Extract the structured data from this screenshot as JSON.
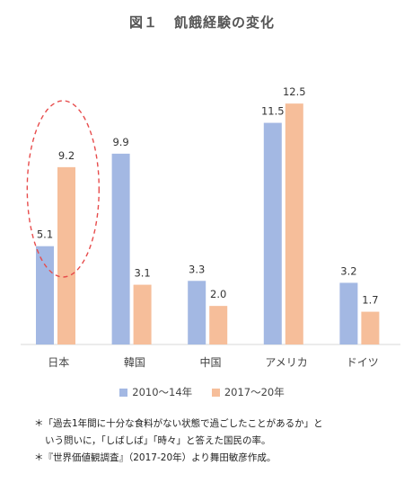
{
  "title": {
    "number": "図１",
    "text": "飢餓経験の変化"
  },
  "chart_data": {
    "type": "bar",
    "categories": [
      "日本",
      "韓国",
      "中国",
      "アメリカ",
      "ドイツ"
    ],
    "series": [
      {
        "name": "2010～14年",
        "values": [
          5.1,
          9.9,
          3.3,
          11.5,
          3.2
        ]
      },
      {
        "name": "2017～20年",
        "values": [
          9.2,
          3.1,
          2.0,
          12.5,
          1.7
        ]
      }
    ],
    "value_labels": [
      [
        "5.1",
        "9.9",
        "3.3",
        "11.5",
        "3.2"
      ],
      [
        "9.2",
        "3.1",
        "2.0",
        "12.5",
        "1.7"
      ]
    ],
    "ylim": [
      0,
      14
    ],
    "grid": false,
    "legend_position": "bottom",
    "highlight": {
      "category": "日本",
      "style": "dashed-ellipse"
    },
    "colors": [
      "#a3b8e3",
      "#f6be9a"
    ],
    "axis_color": "#d9d9d9",
    "highlight_color": "#e74c4c"
  },
  "notes": {
    "line1": "＊「過去1年間に十分な食料がない状態で過ごしたことがあるか」と",
    "line2": "いう問いに，「しばしば」「時々」と答えた国民の率。",
    "line3": "＊『世界価値観調査』（2017-20年）より舞田敏彦作成。"
  }
}
